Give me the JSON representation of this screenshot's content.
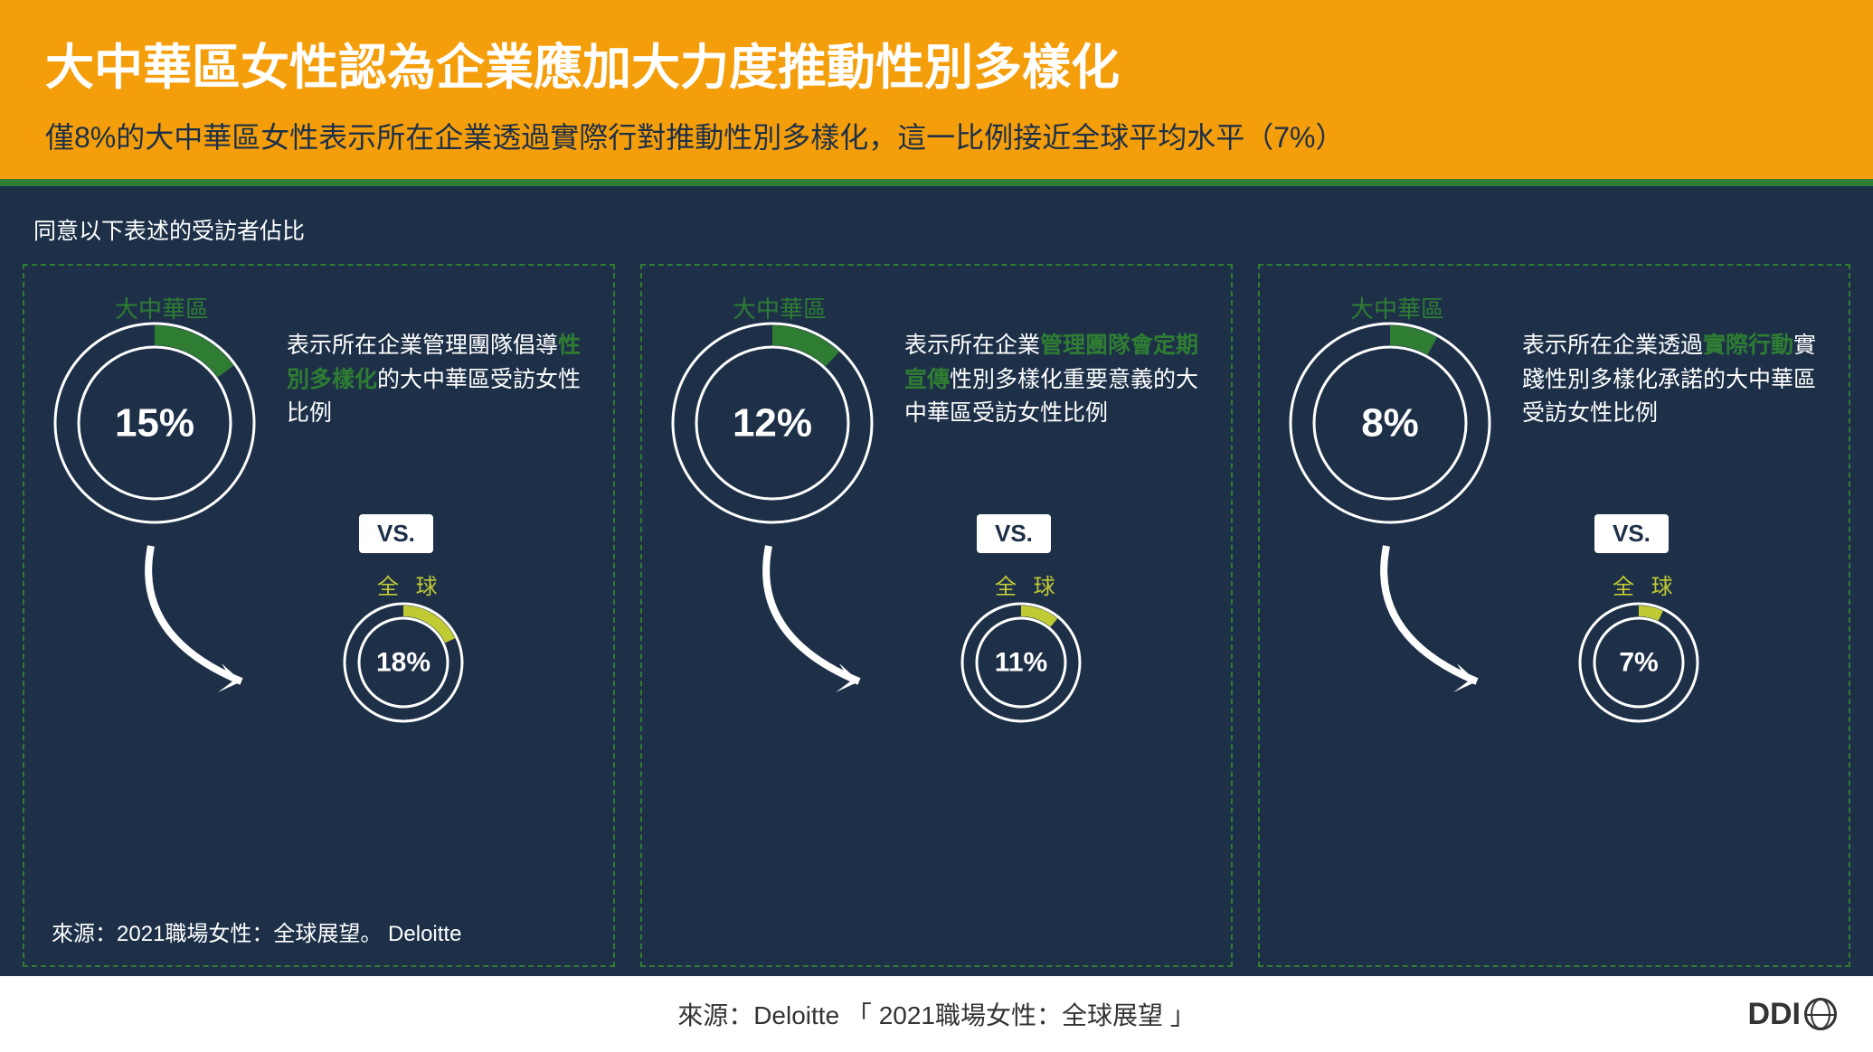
{
  "colors": {
    "header_bg": "#f59e0b",
    "slide_bg": "#1d3048",
    "accent_bar": "#2e7d32",
    "panel_border": "#2e7d32",
    "region_color": "#2e7d32",
    "global_color": "#c0ca33",
    "text_white": "#ffffff",
    "vs_bg": "#ffffff",
    "vs_text": "#1d3048",
    "footer_bg": "#ffffff",
    "footer_text": "#333333"
  },
  "title": "大中華區女性認為企業應加大力度推動性別多樣化",
  "subtitle": "僅8%的大中華區女性表示所在企業透過實際行對推動性別多樣化，這一比例接近全球平均水平（7%）",
  "caption": "同意以下表述的受訪者佔比",
  "labels": {
    "region": "大中華區",
    "global": "全 球",
    "vs": "VS."
  },
  "donut_style": {
    "big_outer_r": 110,
    "big_ring_width": 26,
    "big_inner_stroke": "#ffffff",
    "big_fontsize": 44,
    "small_outer_r": 65,
    "small_ring_width": 16,
    "small_fontsize": 30,
    "track_color": "#1d3048",
    "ring_outline": "#ffffff"
  },
  "panels": [
    {
      "big": {
        "value": 15,
        "label": "15%",
        "color": "#2e7d32"
      },
      "small": {
        "value": 18,
        "label": "18%",
        "color": "#c0ca33"
      },
      "desc_pre": "表示所在企業管理團隊倡導",
      "desc_hl": "性別多樣化",
      "desc_post": "的大中華區受訪女性比例",
      "source": "來源：2021職場女性：全球展望。 Deloitte"
    },
    {
      "big": {
        "value": 12,
        "label": "12%",
        "color": "#2e7d32"
      },
      "small": {
        "value": 11,
        "label": "11%",
        "color": "#c0ca33"
      },
      "desc_pre": "表示所在企業",
      "desc_hl": "管理團隊會定期宣傳",
      "desc_post": "性別多樣化重要意義的大中華區受訪女性比例",
      "source": ""
    },
    {
      "big": {
        "value": 8,
        "label": "8%",
        "color": "#2e7d32"
      },
      "small": {
        "value": 7,
        "label": "7%",
        "color": "#c0ca33"
      },
      "desc_pre": "表示所在企業透過",
      "desc_hl": "實際行動",
      "desc_post": "實踐性別多樣化承諾的大中華區受訪女性比例",
      "source": ""
    }
  ],
  "footer": "來源：Deloitte 「 2021職場女性：全球展望 」",
  "logo_text": "DDI"
}
